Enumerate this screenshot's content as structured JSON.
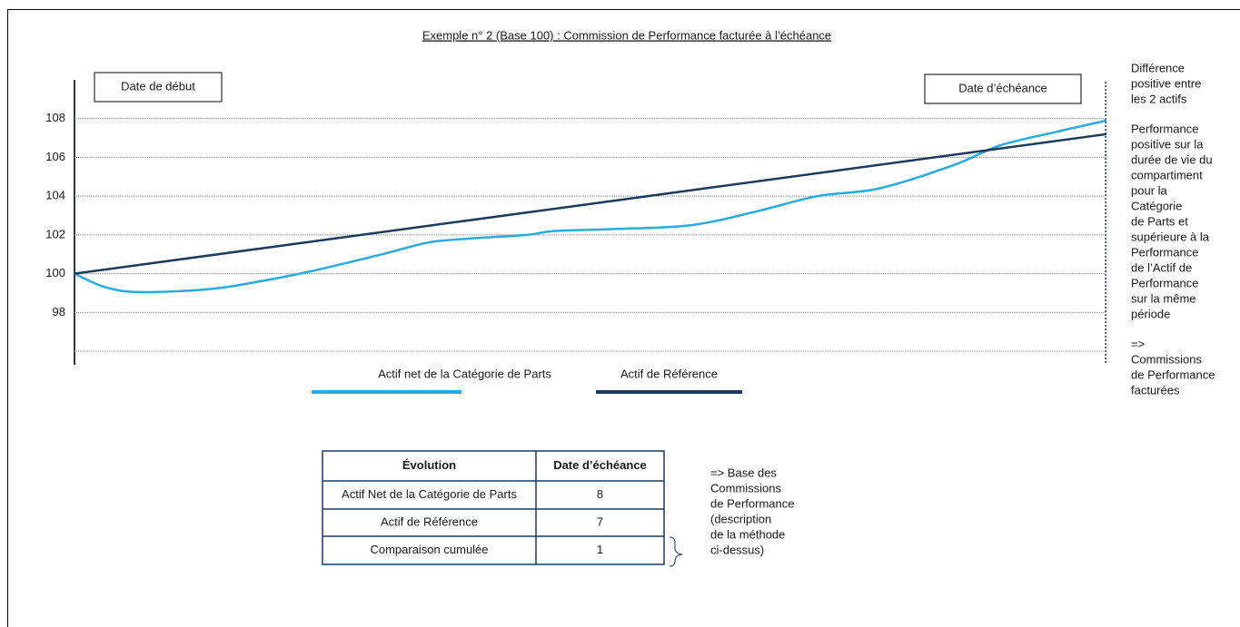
{
  "chart_data": {
    "type": "line",
    "title": "Exemple n° 2 (Base 100) : Commission de Performance facturée à l’échéance",
    "xlim": [
      0,
      100
    ],
    "ylim": [
      95.3,
      110
    ],
    "yticks": [
      {
        "value": 96,
        "label": null
      },
      98,
      100,
      102,
      104,
      106,
      108
    ],
    "grid": true,
    "series": [
      {
        "name": "Actif net de la Catégorie de Parts",
        "color": "#29abe2",
        "x": [
          0,
          3,
          6.4,
          13,
          17.4,
          22.7,
          29.8,
          34.2,
          38,
          43.8,
          46.5,
          52,
          59.7,
          66,
          72,
          78,
          85.2,
          89.6,
          95,
          100
        ],
        "values": [
          100,
          99.3,
          99.05,
          99.2,
          99.55,
          100.1,
          101,
          101.6,
          101.8,
          102,
          102.2,
          102.3,
          102.5,
          103.2,
          104,
          104.4,
          105.6,
          106.6,
          107.3,
          107.9
        ]
      },
      {
        "name": "Actif de Référence",
        "color": "#1b3a5c",
        "x": [
          0,
          100
        ],
        "values": [
          100,
          107.2
        ]
      }
    ],
    "start_label": "Date de début",
    "end_label": "Date d’échéance",
    "right_note": [
      [
        "Différence",
        "positive entre",
        "les 2 actifs"
      ],
      [
        "Performance",
        "positive sur la",
        "durée de vie du",
        "compartiment",
        "pour la",
        "Catégorie",
        "de Parts et",
        "supérieure à la",
        "Performance",
        "de l’Actif de",
        "Performance",
        "sur la même",
        "période"
      ],
      [
        "=>",
        "Commissions",
        "de Performance",
        "facturées"
      ]
    ],
    "table": {
      "header": [
        "Évolution",
        "Date d’échéance"
      ],
      "rows": [
        [
          "Actif Net de la Catégorie de Parts",
          "8"
        ],
        [
          "Actif de Référence",
          "7"
        ],
        [
          "Comparaison cumulée",
          "1"
        ]
      ]
    },
    "table_note": [
      "=> Base des",
      "Commissions",
      "de Performance",
      "(description",
      "de la méthode",
      "ci-dessus)"
    ]
  }
}
